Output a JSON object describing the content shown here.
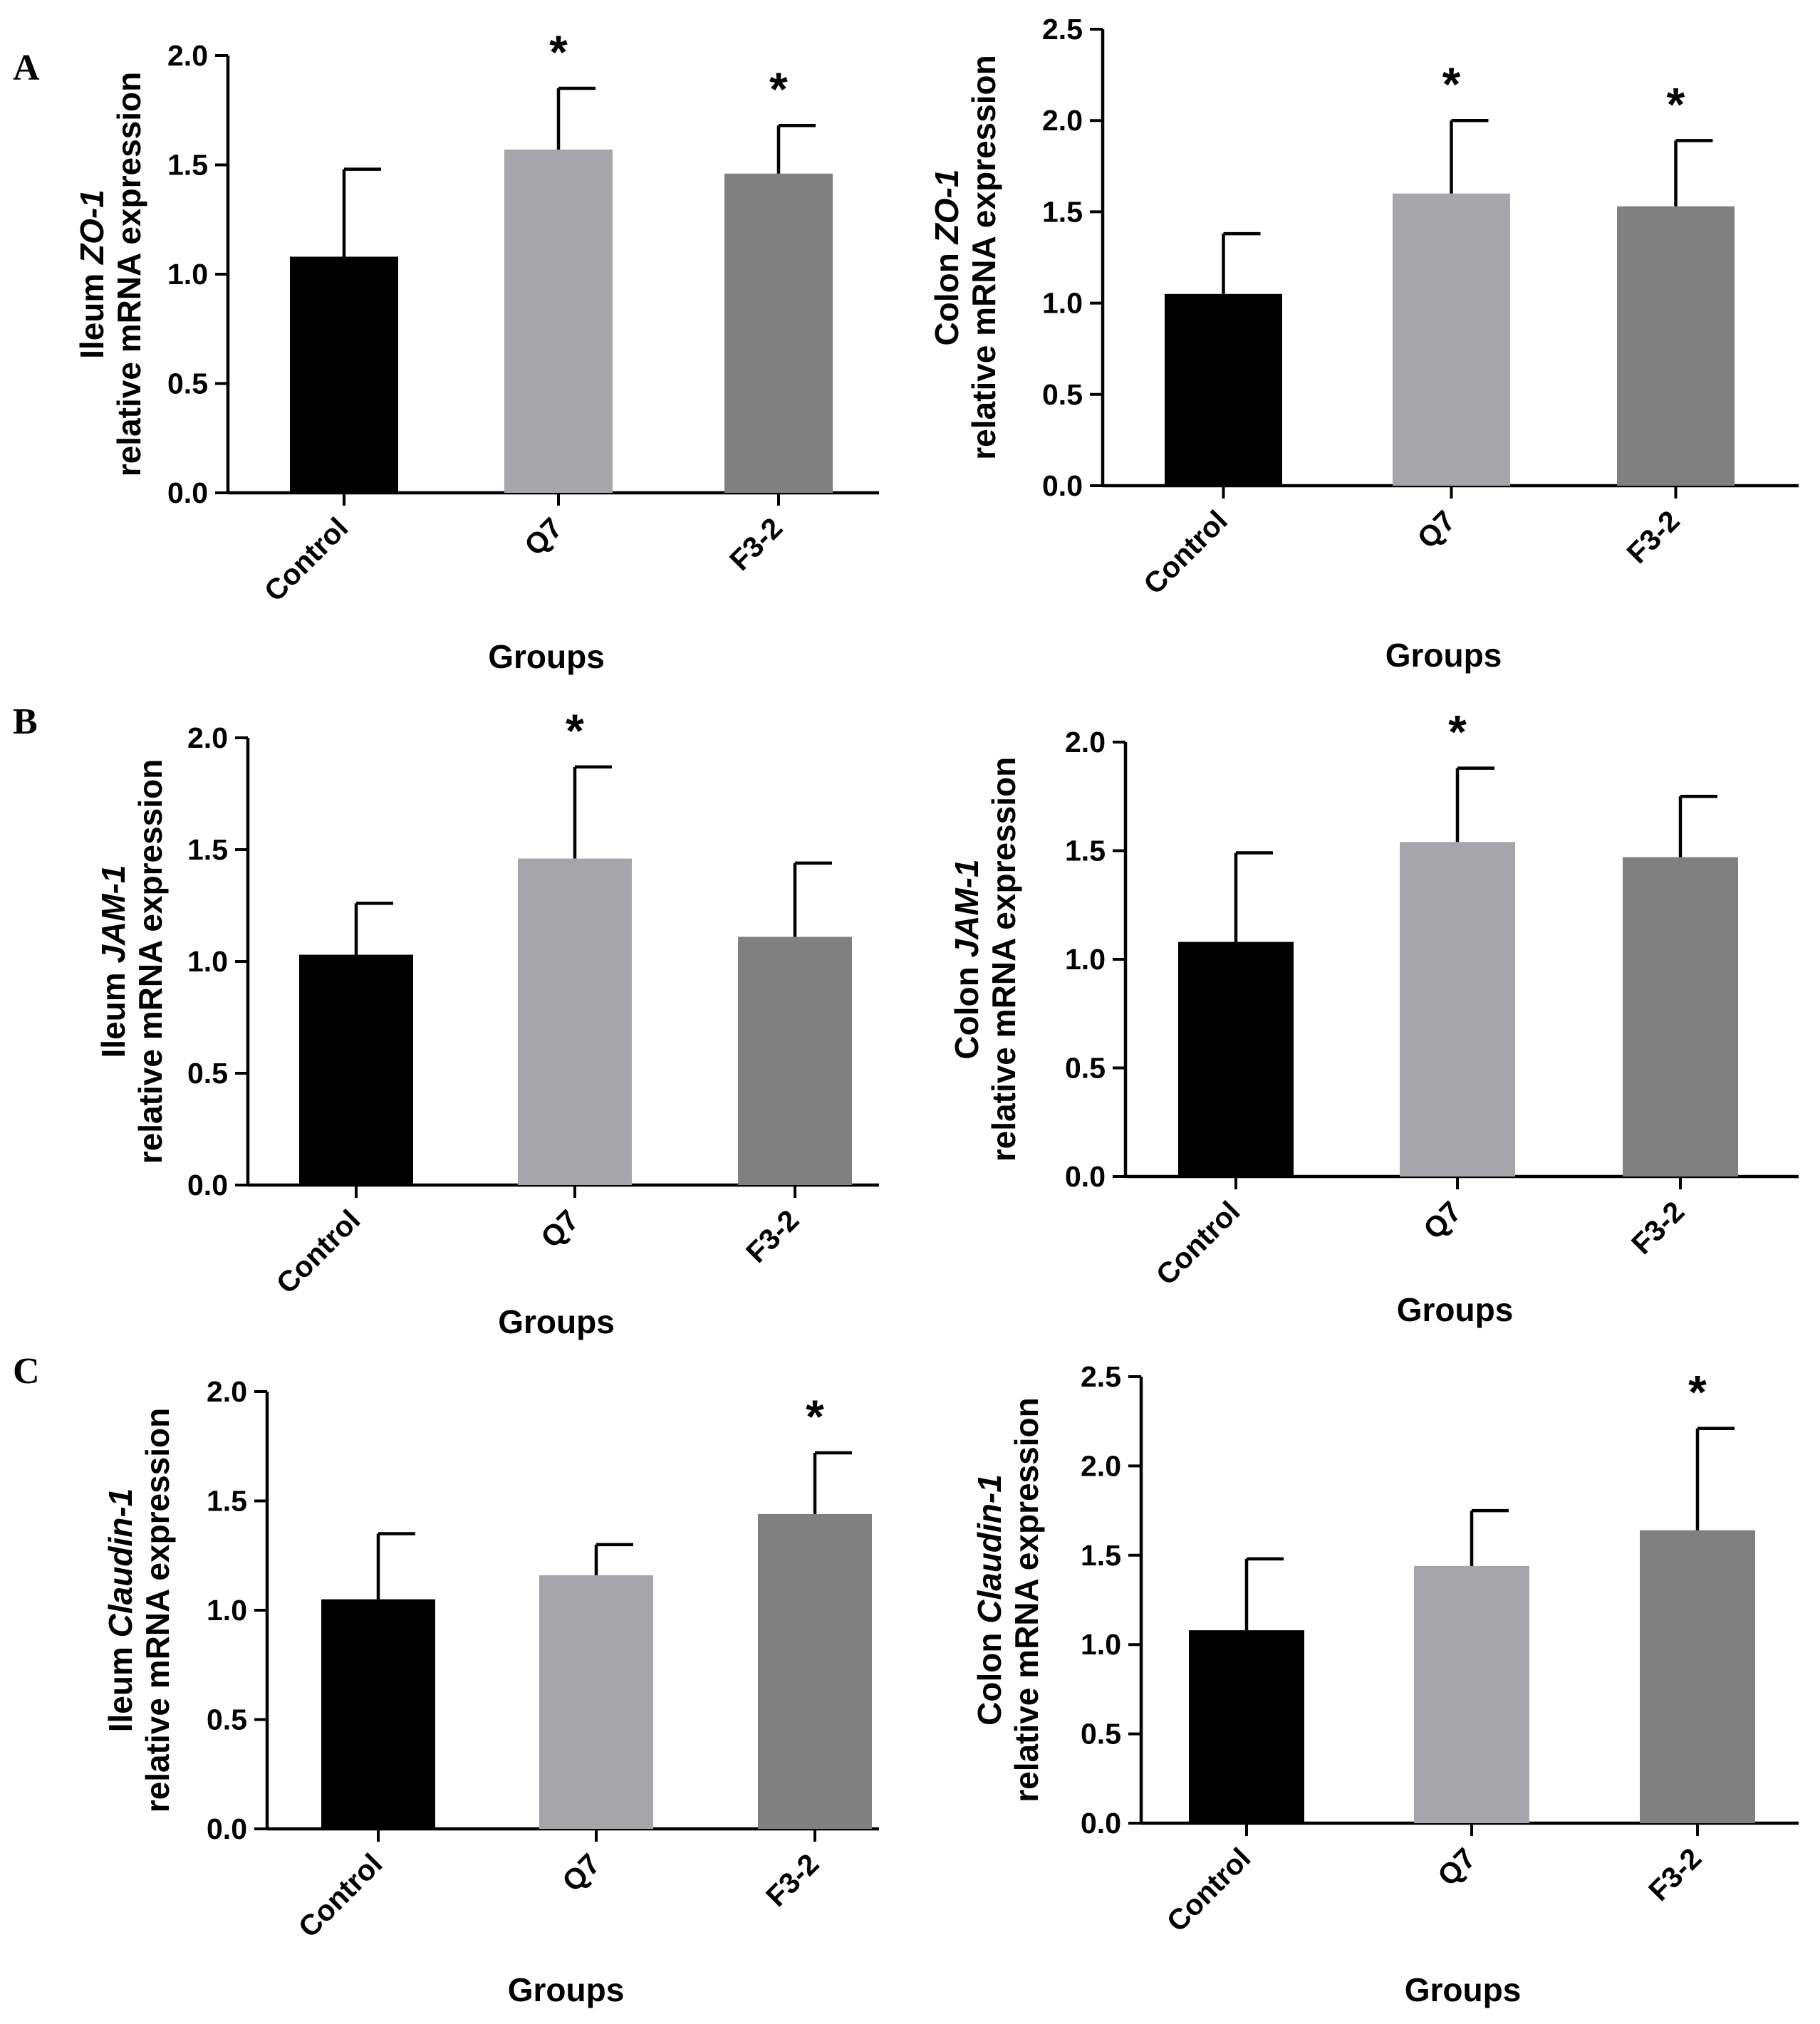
{
  "chart_data": [
    {
      "type": "bar",
      "panel": "A",
      "categories": [
        "Control",
        "Q7",
        "F3-2"
      ],
      "values": [
        1.08,
        1.57,
        1.46
      ],
      "errors": [
        0.4,
        0.28,
        0.22
      ],
      "significance": [
        "",
        "*",
        "*"
      ],
      "ylim": [
        0,
        2.0
      ],
      "ticks": [
        "0.0",
        "0.5",
        "1.0",
        "1.5",
        "2.0"
      ],
      "tick_step": 0.5,
      "ylabel_prefix": "Ileum ",
      "ylabel_gene": "ZO-1",
      "ylabel_line2": "relative mRNA expression",
      "xlabel": "Groups",
      "colors": [
        "#000000",
        "#a6a5aa",
        "#808080"
      ]
    },
    {
      "type": "bar",
      "panel": "",
      "categories": [
        "Control",
        "Q7",
        "F3-2"
      ],
      "values": [
        1.05,
        1.6,
        1.53
      ],
      "errors": [
        0.33,
        0.4,
        0.36
      ],
      "significance": [
        "",
        "*",
        "*"
      ],
      "ylim": [
        0,
        2.5
      ],
      "ticks": [
        "0.0",
        "0.5",
        "1.0",
        "1.5",
        "2.0",
        "2.5"
      ],
      "tick_step": 0.5,
      "ylabel_prefix": "Colon ",
      "ylabel_gene": "ZO-1",
      "ylabel_line2": "relative mRNA expression",
      "xlabel": "Groups",
      "colors": [
        "#000000",
        "#a6a5aa",
        "#808080"
      ]
    },
    {
      "type": "bar",
      "panel": "B",
      "categories": [
        "Control",
        "Q7",
        "F3-2"
      ],
      "values": [
        1.03,
        1.46,
        1.11
      ],
      "errors": [
        0.23,
        0.41,
        0.33
      ],
      "significance": [
        "",
        "*",
        ""
      ],
      "ylim": [
        0,
        2.0
      ],
      "ticks": [
        "0.0",
        "0.5",
        "1.0",
        "1.5",
        "2.0"
      ],
      "tick_step": 0.5,
      "ylabel_prefix": "Ileum ",
      "ylabel_gene": "JAM-1",
      "ylabel_line2": "relative mRNA expression",
      "xlabel": "Groups",
      "colors": [
        "#000000",
        "#a6a5aa",
        "#808080"
      ]
    },
    {
      "type": "bar",
      "panel": "",
      "categories": [
        "Control",
        "Q7",
        "F3-2"
      ],
      "values": [
        1.08,
        1.54,
        1.47
      ],
      "errors": [
        0.41,
        0.34,
        0.28
      ],
      "significance": [
        "",
        "*",
        ""
      ],
      "ylim": [
        0,
        2.0
      ],
      "ticks": [
        "0.0",
        "0.5",
        "1.0",
        "1.5",
        "2.0"
      ],
      "tick_step": 0.5,
      "ylabel_prefix": "Colon ",
      "ylabel_gene": "JAM-1",
      "ylabel_line2": "relative mRNA expression",
      "xlabel": "Groups",
      "colors": [
        "#000000",
        "#a6a5aa",
        "#808080"
      ]
    },
    {
      "type": "bar",
      "panel": "C",
      "categories": [
        "Control",
        "Q7",
        "F3-2"
      ],
      "values": [
        1.05,
        1.16,
        1.44
      ],
      "errors": [
        0.3,
        0.14,
        0.28
      ],
      "significance": [
        "",
        "",
        "*"
      ],
      "ylim": [
        0,
        2.0
      ],
      "ticks": [
        "0.0",
        "0.5",
        "1.0",
        "1.5",
        "2.0"
      ],
      "tick_step": 0.5,
      "ylabel_prefix": "Ileum ",
      "ylabel_gene": "Claudin-1",
      "ylabel_line2": "relative mRNA expression",
      "xlabel": "Groups",
      "colors": [
        "#000000",
        "#a6a5aa",
        "#808080"
      ]
    },
    {
      "type": "bar",
      "panel": "",
      "categories": [
        "Control",
        "Q7",
        "F3-2"
      ],
      "values": [
        1.08,
        1.44,
        1.64
      ],
      "errors": [
        0.4,
        0.31,
        0.57
      ],
      "significance": [
        "",
        "",
        "*"
      ],
      "ylim": [
        0,
        2.5
      ],
      "ticks": [
        "0.0",
        "0.5",
        "1.0",
        "1.5",
        "2.0",
        "2.5"
      ],
      "tick_step": 0.5,
      "ylabel_prefix": "Colon ",
      "ylabel_gene": "Claudin-1",
      "ylabel_line2": "relative mRNA expression",
      "xlabel": "Groups",
      "colors": [
        "#000000",
        "#a6a5aa",
        "#808080"
      ]
    }
  ]
}
